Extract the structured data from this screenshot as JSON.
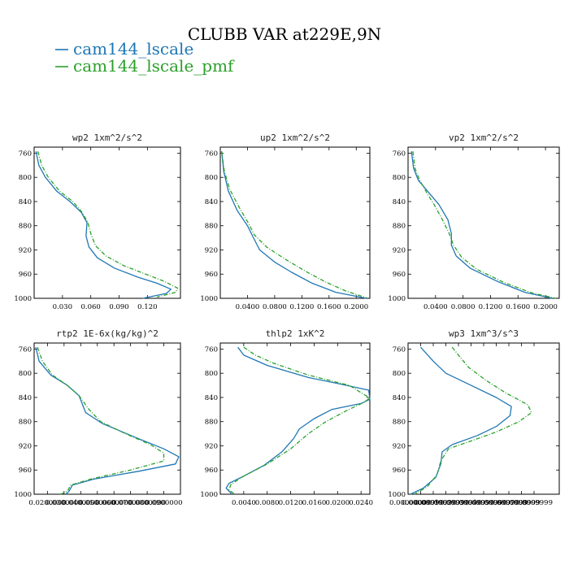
{
  "figure": {
    "title": "CLUBB VAR at229E,9N",
    "legend": [
      {
        "label": "cam144_lscale",
        "color": "#1f77b4",
        "dashed": false
      },
      {
        "label": "cam144_lscale_pmf",
        "color": "#2ca02c",
        "dashed": true
      }
    ]
  },
  "chart_data": [
    {
      "type": "line",
      "title": "wp2  1xm^2/s^2",
      "ylim": [
        1000,
        750
      ],
      "yticks": [
        760,
        800,
        840,
        880,
        920,
        960,
        1000
      ],
      "xlim": [
        0.0,
        0.155
      ],
      "xtick_values": [
        0.03,
        0.06,
        0.09,
        0.12
      ],
      "xtick_labels": [
        "0.030",
        "0.060",
        "0.090",
        "0.120"
      ],
      "series": [
        {
          "name": "cam144_lscale",
          "points": [
            [
              0.002,
              757
            ],
            [
              0.005,
              780
            ],
            [
              0.012,
              800
            ],
            [
              0.024,
              823
            ],
            [
              0.038,
              840
            ],
            [
              0.05,
              858
            ],
            [
              0.056,
              875
            ],
            [
              0.055,
              897
            ],
            [
              0.058,
              915
            ],
            [
              0.067,
              933
            ],
            [
              0.085,
              950
            ],
            [
              0.11,
              965
            ],
            [
              0.13,
              975
            ],
            [
              0.145,
              985
            ],
            [
              0.14,
              992
            ],
            [
              0.115,
              1000
            ]
          ]
        },
        {
          "name": "cam144_lscale_pmf",
          "points": [
            [
              0.004,
              757
            ],
            [
              0.008,
              780
            ],
            [
              0.015,
              800
            ],
            [
              0.027,
              823
            ],
            [
              0.041,
              840
            ],
            [
              0.051,
              858
            ],
            [
              0.057,
              875
            ],
            [
              0.06,
              893
            ],
            [
              0.065,
              913
            ],
            [
              0.076,
              930
            ],
            [
              0.095,
              946
            ],
            [
              0.118,
              960
            ],
            [
              0.138,
              972
            ],
            [
              0.152,
              983
            ],
            [
              0.15,
              990
            ],
            [
              0.13,
              998
            ]
          ]
        }
      ]
    },
    {
      "type": "line",
      "title": "up2  1xm^2/s^2",
      "ylim": [
        1000,
        750
      ],
      "yticks": [
        760,
        800,
        840,
        880,
        920,
        960,
        1000
      ],
      "xlim": [
        0.0,
        0.22
      ],
      "xtick_values": [
        0.04,
        0.08,
        0.12,
        0.16,
        0.2
      ],
      "xtick_labels": [
        "0.0400",
        "0.0800",
        "0.1200",
        "0.1600",
        "0.2000"
      ],
      "series": [
        {
          "name": "cam144_lscale",
          "points": [
            [
              0.002,
              757
            ],
            [
              0.005,
              790
            ],
            [
              0.012,
              823
            ],
            [
              0.025,
              855
            ],
            [
              0.04,
              880
            ],
            [
              0.048,
              898
            ],
            [
              0.058,
              920
            ],
            [
              0.08,
              940
            ],
            [
              0.105,
              957
            ],
            [
              0.135,
              975
            ],
            [
              0.17,
              990
            ],
            [
              0.215,
              1000
            ]
          ]
        },
        {
          "name": "cam144_lscale_pmf",
          "points": [
            [
              0.002,
              757
            ],
            [
              0.006,
              790
            ],
            [
              0.014,
              820
            ],
            [
              0.028,
              850
            ],
            [
              0.042,
              877
            ],
            [
              0.05,
              895
            ],
            [
              0.068,
              915
            ],
            [
              0.095,
              935
            ],
            [
              0.125,
              955
            ],
            [
              0.155,
              973
            ],
            [
              0.185,
              988
            ],
            [
              0.215,
              999
            ]
          ]
        }
      ]
    },
    {
      "type": "line",
      "title": "vp2  1xm^2/s^2",
      "ylim": [
        1000,
        750
      ],
      "yticks": [
        760,
        800,
        840,
        880,
        920,
        960,
        1000
      ],
      "xlim": [
        0.0,
        0.22
      ],
      "xtick_values": [
        0.04,
        0.08,
        0.12,
        0.16,
        0.2
      ],
      "xtick_labels": [
        "0.0400",
        "0.0800",
        "0.1200",
        "0.1600",
        "0.2000"
      ],
      "series": [
        {
          "name": "cam144_lscale",
          "points": [
            [
              0.005,
              757
            ],
            [
              0.008,
              785
            ],
            [
              0.015,
              805
            ],
            [
              0.03,
              825
            ],
            [
              0.045,
              845
            ],
            [
              0.058,
              870
            ],
            [
              0.063,
              893
            ],
            [
              0.063,
              912
            ],
            [
              0.07,
              930
            ],
            [
              0.09,
              950
            ],
            [
              0.13,
              972
            ],
            [
              0.17,
              990
            ],
            [
              0.21,
              1000
            ]
          ]
        },
        {
          "name": "cam144_lscale_pmf",
          "points": [
            [
              0.007,
              757
            ],
            [
              0.01,
              785
            ],
            [
              0.017,
              805
            ],
            [
              0.027,
              825
            ],
            [
              0.038,
              845
            ],
            [
              0.05,
              870
            ],
            [
              0.06,
              893
            ],
            [
              0.066,
              912
            ],
            [
              0.078,
              932
            ],
            [
              0.1,
              952
            ],
            [
              0.14,
              974
            ],
            [
              0.18,
              991
            ],
            [
              0.215,
              1000
            ]
          ]
        }
      ]
    },
    {
      "type": "line",
      "title": "rtp2  1E-6x(kg/kg)^2",
      "ylim": [
        1000,
        750
      ],
      "yticks": [
        760,
        800,
        840,
        880,
        920,
        960,
        1000
      ],
      "xlim": [
        0.012,
        0.1
      ],
      "xtick_values": [
        0.02,
        0.03,
        0.04,
        0.05,
        0.06,
        0.07,
        0.08,
        0.09
      ],
      "xtick_labels": [
        "0.0200000",
        "0.0300000",
        "0.0400000",
        "0.0500000",
        "0.0600000",
        "0.0700000",
        "0.0800000",
        "0.0900000"
      ],
      "series": [
        {
          "name": "cam144_lscale",
          "points": [
            [
              0.013,
              757
            ],
            [
              0.015,
              780
            ],
            [
              0.022,
              803
            ],
            [
              0.032,
              820
            ],
            [
              0.039,
              837
            ],
            [
              0.043,
              865
            ],
            [
              0.053,
              883
            ],
            [
              0.072,
              905
            ],
            [
              0.09,
              925
            ],
            [
              0.099,
              938
            ],
            [
              0.097,
              950
            ],
            [
              0.075,
              962
            ],
            [
              0.048,
              975
            ],
            [
              0.035,
              985
            ],
            [
              0.033,
              995
            ],
            [
              0.031,
              1000
            ]
          ]
        },
        {
          "name": "cam144_lscale_pmf",
          "points": [
            [
              0.014,
              757
            ],
            [
              0.017,
              780
            ],
            [
              0.023,
              803
            ],
            [
              0.032,
              820
            ],
            [
              0.039,
              837
            ],
            [
              0.045,
              860
            ],
            [
              0.052,
              880
            ],
            [
              0.067,
              900
            ],
            [
              0.082,
              918
            ],
            [
              0.09,
              932
            ],
            [
              0.09,
              945
            ],
            [
              0.07,
              960
            ],
            [
              0.046,
              975
            ],
            [
              0.034,
              985
            ],
            [
              0.032,
              995
            ],
            [
              0.028,
              1000
            ]
          ]
        }
      ]
    },
    {
      "type": "line",
      "title": "thlp2  1xK^2",
      "ylim": [
        1000,
        750
      ],
      "yticks": [
        760,
        800,
        840,
        880,
        920,
        960,
        1000
      ],
      "xlim": [
        0.0,
        0.0255
      ],
      "xtick_values": [
        0.004,
        0.008,
        0.012,
        0.016,
        0.02,
        0.024
      ],
      "xtick_labels": [
        "0.0040",
        "0.0080",
        "0.0120",
        "0.0160",
        "0.0200",
        "0.0240"
      ],
      "series": [
        {
          "name": "cam144_lscale",
          "points": [
            [
              0.003,
              757
            ],
            [
              0.004,
              770
            ],
            [
              0.008,
              787
            ],
            [
              0.015,
              807
            ],
            [
              0.02,
              817
            ],
            [
              0.0253,
              828
            ],
            [
              0.0255,
              843
            ],
            [
              0.024,
              850
            ],
            [
              0.019,
              860
            ],
            [
              0.016,
              875
            ],
            [
              0.0135,
              892
            ],
            [
              0.0125,
              908
            ],
            [
              0.0105,
              930
            ],
            [
              0.0075,
              952
            ],
            [
              0.004,
              970
            ],
            [
              0.0015,
              982
            ],
            [
              0.001,
              990
            ],
            [
              0.002,
              1000
            ]
          ]
        },
        {
          "name": "cam144_lscale_pmf",
          "points": [
            [
              0.004,
              757
            ],
            [
              0.006,
              770
            ],
            [
              0.009,
              783
            ],
            [
              0.015,
              803
            ],
            [
              0.022,
              820
            ],
            [
              0.0255,
              841
            ],
            [
              0.0245,
              848
            ],
            [
              0.0215,
              862
            ],
            [
              0.018,
              880
            ],
            [
              0.015,
              900
            ],
            [
              0.012,
              925
            ],
            [
              0.008,
              950
            ],
            [
              0.004,
              970
            ],
            [
              0.0018,
              984
            ],
            [
              0.0015,
              993
            ],
            [
              0.0025,
              1000
            ]
          ]
        }
      ]
    },
    {
      "type": "line",
      "title": "wp3  1xm^3/s^3",
      "ylim": [
        1000,
        750
      ],
      "yticks": [
        760,
        800,
        840,
        880,
        920,
        960,
        1000
      ],
      "xlim": [
        0.0,
        0.0012
      ],
      "xtick_values": [
        0.0001,
        0.0002,
        0.0003,
        0.0004,
        0.0005,
        0.0006,
        0.0007,
        0.0008,
        0.0009,
        0.001
      ],
      "xtick_labels": [
        "0.0000999",
        "0.0001999",
        "0.0002999",
        "0.0003999",
        "0.0004999",
        "0.0005999",
        "0.0006999",
        "0.0007999",
        "0.0008999",
        "0.0009999"
      ],
      "xtick_first_label": "0.0000000",
      "series": [
        {
          "name": "cam144_lscale",
          "points": [
            [
              0.0001,
              757
            ],
            [
              0.0002,
              780
            ],
            [
              0.0003,
              800
            ],
            [
              0.0005,
              820
            ],
            [
              0.0007,
              840
            ],
            [
              0.00082,
              855
            ],
            [
              0.00081,
              870
            ],
            [
              0.0007,
              888
            ],
            [
              0.00055,
              903
            ],
            [
              0.00035,
              918
            ],
            [
              0.00027,
              930
            ],
            [
              0.00026,
              950
            ],
            [
              0.00022,
              972
            ],
            [
              0.00012,
              990
            ],
            [
              2e-05,
              1000
            ]
          ]
        },
        {
          "name": "cam144_lscale_pmf",
          "points": [
            [
              0.00035,
              757
            ],
            [
              0.0004,
              770
            ],
            [
              0.00048,
              790
            ],
            [
              0.00062,
              812
            ],
            [
              0.00078,
              833
            ],
            [
              0.00095,
              852
            ],
            [
              0.00098,
              865
            ],
            [
              0.00088,
              880
            ],
            [
              0.0007,
              897
            ],
            [
              0.0005,
              912
            ],
            [
              0.00032,
              925
            ],
            [
              0.00026,
              945
            ],
            [
              0.00023,
              968
            ],
            [
              0.00015,
              988
            ],
            [
              5e-05,
              1000
            ]
          ]
        }
      ]
    }
  ]
}
